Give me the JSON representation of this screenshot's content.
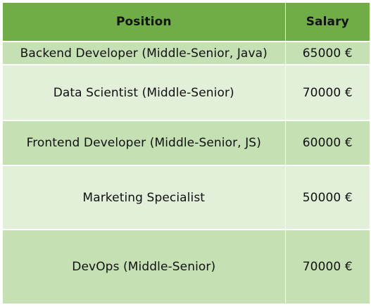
{
  "table": {
    "headers": [
      "Position",
      "Salary"
    ],
    "rows": [
      {
        "position": "Backend Developer (Middle-Senior, Java)",
        "salary": "65000 €"
      },
      {
        "position": "Data Scientist (Middle-Senior)",
        "salary": "70000 €"
      },
      {
        "position": "Frontend Developer (Middle-Senior, JS)",
        "salary": "60000 €"
      },
      {
        "position": "Marketing Specialist",
        "salary": "50000 €"
      },
      {
        "position": "DevOps (Middle-Senior)",
        "salary": "70000 €"
      }
    ]
  },
  "colors": {
    "header": "#70ad47",
    "row_dark": "#c5e0b3",
    "row_light": "#e2efd9"
  }
}
